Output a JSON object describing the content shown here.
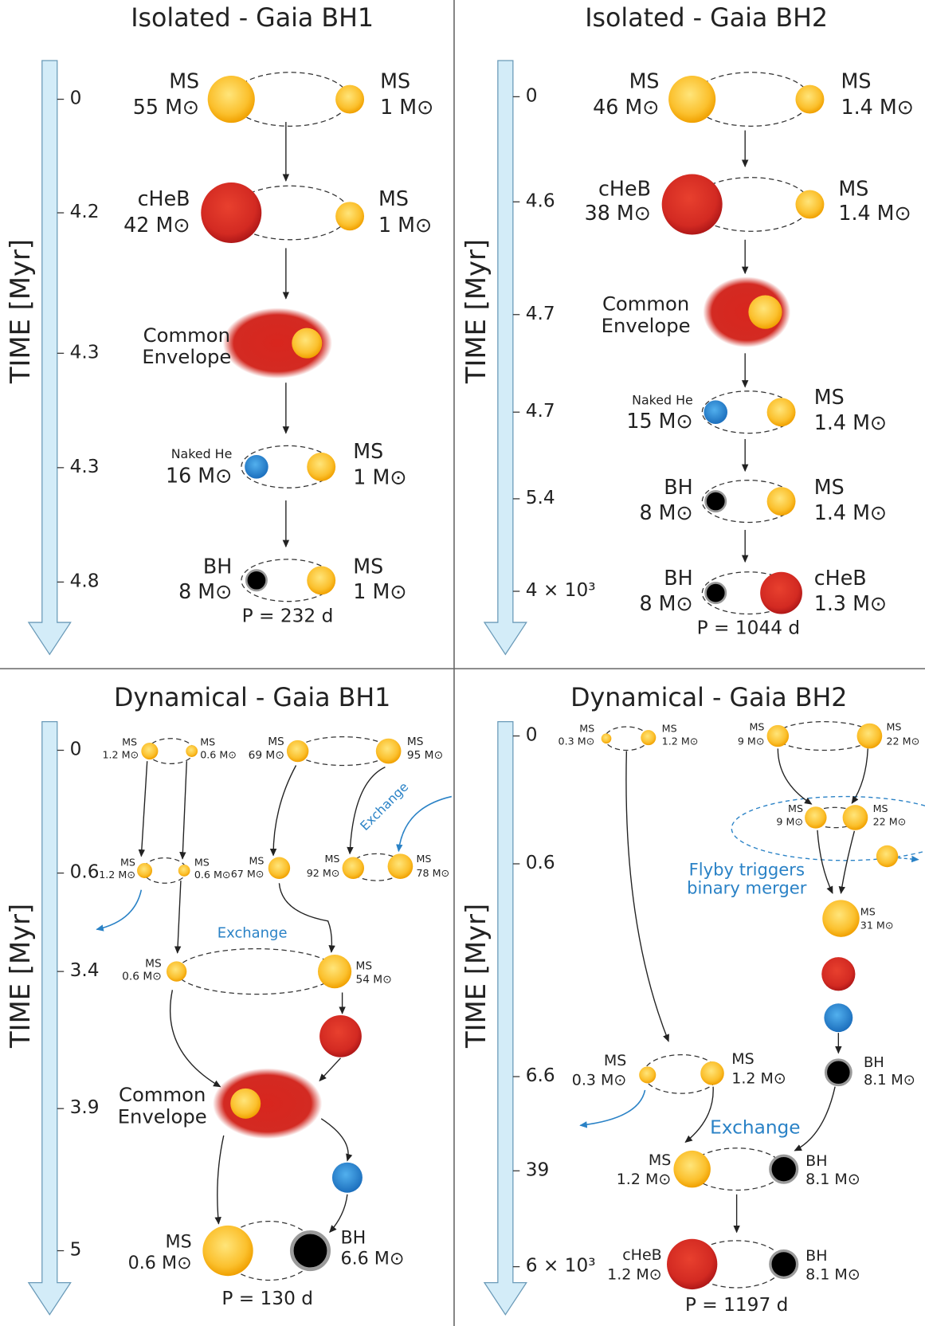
{
  "panels": [
    {
      "title": "Isolated - Gaia BH1",
      "axis_label": "TIME [Myr]",
      "ticks": [
        "0",
        "4.2",
        "4.3",
        "4.3",
        "4.8"
      ],
      "labels": [
        "MS",
        "55 M⊙",
        "MS",
        "1 M⊙",
        "cHeB",
        "42 M⊙",
        "MS",
        "1 M⊙",
        "Common Envelope",
        "Naked He",
        "16 M⊙",
        "MS",
        "1 M⊙",
        "BH",
        "8 M⊙",
        "MS",
        "1 M⊙",
        "P = 232 d"
      ]
    },
    {
      "title": "Isolated - Gaia BH2",
      "axis_label": "TIME [Myr]",
      "ticks": [
        "0",
        "4.6",
        "4.7",
        "4.7",
        "5.4",
        "4 × 10³"
      ],
      "labels": [
        "MS",
        "46 M⊙",
        "MS",
        "1.4 M⊙",
        "cHeB",
        "38 M⊙",
        "MS",
        "1.4 M⊙",
        "Common Envelope",
        "Naked He",
        "15 M⊙",
        "MS",
        "1.4 M⊙",
        "BH",
        "8 M⊙",
        "MS",
        "1.4 M⊙",
        "BH",
        "8 M⊙",
        "cHeB",
        "1.3 M⊙",
        "P = 1044 d"
      ]
    },
    {
      "title": "Dynamical - Gaia BH1",
      "axis_label": "TIME [Myr]",
      "ticks": [
        "0",
        "0.6",
        "3.4",
        "3.9",
        "5"
      ],
      "labels": [
        "MS",
        "1.2 M⊙",
        "MS",
        "0.6 M⊙",
        "MS",
        "69 M⊙",
        "MS",
        "95 M⊙",
        "Exchange",
        "MS",
        "1.2 M⊙",
        "MS",
        "0.6 M⊙",
        "MS",
        "67 M⊙",
        "MS",
        "92 M⊙",
        "MS",
        "78 M⊙",
        "Exchange",
        "MS",
        "0.6 M⊙",
        "MS",
        "54 M⊙",
        "Common Envelope",
        "MS",
        "0.6 M⊙",
        "BH",
        "6.6 M⊙",
        "P = 130 d"
      ]
    },
    {
      "title": "Dynamical - Gaia BH2",
      "axis_label": "TIME [Myr]",
      "ticks": [
        "0",
        "0.6",
        "6.6",
        "39",
        "6 × 10³"
      ],
      "labels": [
        "MS",
        "0.3 M⊙",
        "MS",
        "1.2 M⊙",
        "MS",
        "9 M⊙",
        "MS",
        "22 M⊙",
        "MS",
        "9 M⊙",
        "MS",
        "22 M⊙",
        "Flyby triggers binary merger",
        "MS",
        "31 M⊙",
        "BH",
        "8.1 M⊙",
        "MS",
        "0.3 M⊙",
        "MS",
        "1.2 M⊙",
        "Exchange",
        "MS",
        "1.2 M⊙",
        "BH",
        "8.1 M⊙",
        "cHeB",
        "1.2 M⊙",
        "BH",
        "8.1 M⊙",
        "P = 1197 d"
      ]
    }
  ]
}
